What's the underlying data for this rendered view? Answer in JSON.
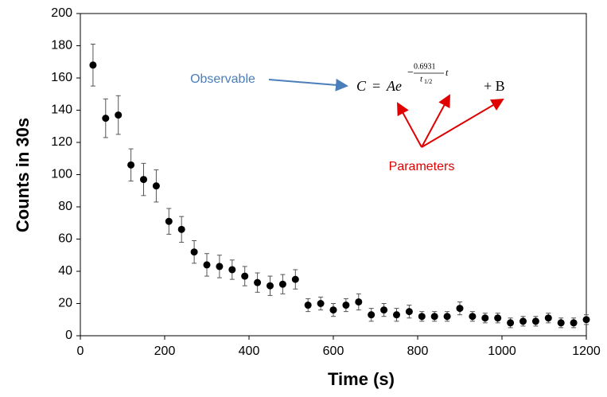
{
  "chart_data": {
    "type": "scatter",
    "xlabel": "Time (s)",
    "ylabel": "Counts in 30s",
    "xlim": [
      0,
      1200
    ],
    "xticks": [
      0,
      200,
      400,
      600,
      800,
      1000,
      1200
    ],
    "ylim": [
      0,
      200
    ],
    "yticks": [
      0,
      20,
      40,
      60,
      80,
      100,
      120,
      140,
      160,
      180,
      200
    ],
    "grid": false,
    "series": [
      {
        "color": "#000000",
        "x": [
          30,
          60,
          90,
          120,
          150,
          180,
          210,
          240,
          270,
          300,
          330,
          360,
          390,
          420,
          450,
          480,
          510,
          540,
          570,
          600,
          630,
          660,
          690,
          720,
          750,
          780,
          810,
          840,
          870,
          900,
          930,
          960,
          990,
          1020,
          1050,
          1080,
          1110,
          1140,
          1170,
          1200
        ],
        "values": [
          168,
          135,
          137,
          106,
          97,
          93,
          71,
          66,
          52,
          44,
          43,
          41,
          37,
          33,
          31,
          32,
          35,
          19,
          20,
          16,
          19,
          21,
          13,
          16,
          13,
          15,
          12,
          12,
          12,
          17,
          12,
          11,
          11,
          8,
          9,
          9,
          11,
          8,
          8,
          10
        ],
        "errors": [
          13,
          12,
          12,
          10,
          10,
          10,
          8,
          8,
          7,
          7,
          7,
          6,
          6,
          6,
          6,
          6,
          6,
          4,
          4,
          4,
          4,
          5,
          4,
          4,
          4,
          4,
          3,
          3,
          3,
          4,
          3,
          3,
          3,
          3,
          3,
          3,
          3,
          3,
          3,
          3
        ]
      }
    ],
    "annotations": {
      "observable": "Observable",
      "parameters": "Parameters",
      "formula": {
        "lhs": "C",
        "eq": "=",
        "base": "Ae",
        "minus": "−",
        "numerator": "0.6931",
        "denominator": "t",
        "denominator_sub": "1/2",
        "t": "t",
        "tail": "+ B"
      }
    }
  }
}
